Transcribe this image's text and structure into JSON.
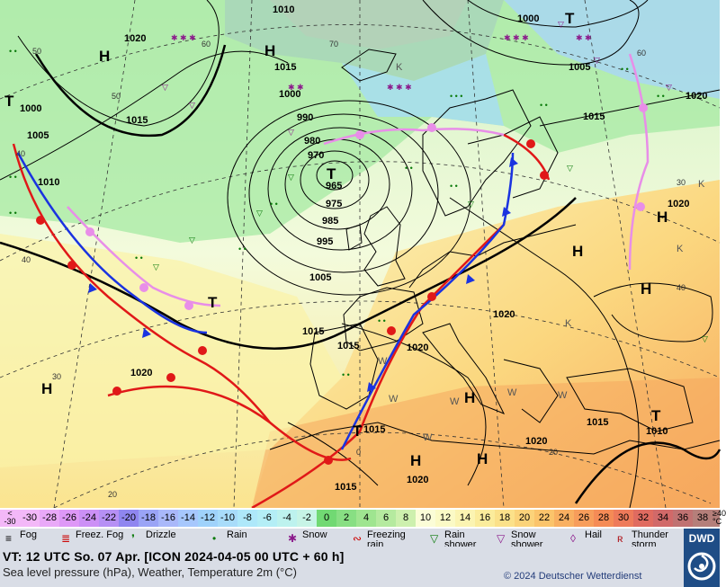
{
  "header": {
    "valid_time": "VT: 12 UTC So.  07 Apr. [ICON 2024-04-05  00 UTC + 60 h]",
    "subtitle": "Sea level pressure (hPa), Weather, Temperature 2m (°C)",
    "copyright": "© 2024 Deutscher Wetterdienst"
  },
  "logo": {
    "text": "DWD"
  },
  "temperature_scale": {
    "left_label": [
      "<",
      "-30"
    ],
    "right_label": [
      "≥40",
      "°C"
    ],
    "cells": [
      {
        "label": "-30",
        "color": "#f3b8f8"
      },
      {
        "label": "-28",
        "color": "#e9a9f8"
      },
      {
        "label": "-26",
        "color": "#de98f7"
      },
      {
        "label": "-24",
        "color": "#cc90f6"
      },
      {
        "label": "-22",
        "color": "#b690f5"
      },
      {
        "label": "-20",
        "color": "#8f86f0"
      },
      {
        "label": "-18",
        "color": "#9aa4f6"
      },
      {
        "label": "-16",
        "color": "#a9b8fa"
      },
      {
        "label": "-14",
        "color": "#a6c7fd"
      },
      {
        "label": "-12",
        "color": "#9fd2fb"
      },
      {
        "label": "-10",
        "color": "#a8dcfa"
      },
      {
        "label": "-8",
        "color": "#aee8fa"
      },
      {
        "label": "-6",
        "color": "#b4eef6"
      },
      {
        "label": "-4",
        "color": "#bdf2ee"
      },
      {
        "label": "-2",
        "color": "#c7f4e6"
      },
      {
        "label": "0",
        "color": "#71d973"
      },
      {
        "label": "2",
        "color": "#88df83"
      },
      {
        "label": "4",
        "color": "#9fe590"
      },
      {
        "label": "6",
        "color": "#b5ea9f"
      },
      {
        "label": "8",
        "color": "#cdf0ae"
      },
      {
        "label": "10",
        "color": "#fbfdd7"
      },
      {
        "label": "12",
        "color": "#fbfac6"
      },
      {
        "label": "14",
        "color": "#fbf4b2"
      },
      {
        "label": "16",
        "color": "#fbec9c"
      },
      {
        "label": "18",
        "color": "#fbe18a"
      },
      {
        "label": "20",
        "color": "#fbd37a"
      },
      {
        "label": "22",
        "color": "#fbc46b"
      },
      {
        "label": "24",
        "color": "#f9b061"
      },
      {
        "label": "26",
        "color": "#f79d5b"
      },
      {
        "label": "28",
        "color": "#f58b56"
      },
      {
        "label": "30",
        "color": "#ee7a5a"
      },
      {
        "label": "32",
        "color": "#e06b60"
      },
      {
        "label": "34",
        "color": "#d16969"
      },
      {
        "label": "36",
        "color": "#c07272"
      },
      {
        "label": "38",
        "color": "#b57f7a"
      }
    ]
  },
  "weather_legend": [
    {
      "icon": "fog-icon",
      "glyph": "≡",
      "label": "Fog",
      "color": "#000"
    },
    {
      "icon": "freezing-fog-icon",
      "glyph": "≣",
      "label": "Freez. Fog",
      "color": "#c00"
    },
    {
      "icon": "drizzle-icon",
      "glyph": "❜",
      "label": "Drizzle",
      "color": "#0a7a0a"
    },
    {
      "icon": "rain-icon",
      "glyph": "•",
      "label": "Rain",
      "color": "#0a7a0a"
    },
    {
      "icon": "snow-icon",
      "glyph": "✱",
      "label": "Snow",
      "color": "#8b1a8b"
    },
    {
      "icon": "freezing-rain-icon",
      "glyph": "∾",
      "label": "Freezing rain",
      "color": "#c00"
    },
    {
      "icon": "rain-shower-icon",
      "glyph": "▽",
      "label": "Rain shower",
      "color": "#0a7a0a"
    },
    {
      "icon": "snow-shower-icon",
      "glyph": "▽",
      "label": "Snow shower",
      "color": "#8b1a8b"
    },
    {
      "icon": "hail-icon",
      "glyph": "◊",
      "label": "Hail",
      "color": "#8b1a8b"
    },
    {
      "icon": "thunderstorm-icon",
      "glyph": "ʀ",
      "label": "Thunder storm",
      "color": "#b0141a"
    }
  ],
  "map": {
    "pressure_labels": [
      "1010",
      "1020",
      "1000",
      "1015",
      "1000",
      "1005",
      "1015",
      "1020",
      "1015",
      "1005",
      "995",
      "990",
      "985",
      "980",
      "975",
      "970",
      "965",
      "1005",
      "1010",
      "1015",
      "1020",
      "1015",
      "1020",
      "1020",
      "1015",
      "1015",
      "1020",
      "1015",
      "1010",
      "1000",
      "1010",
      "1015"
    ],
    "systems": [
      {
        "type": "L",
        "label": "T",
        "name": "low-north-atlantic"
      },
      {
        "type": "H",
        "label": "H",
        "name": "high-greenland"
      },
      {
        "type": "H",
        "label": "H",
        "name": "high-iceland-north"
      },
      {
        "type": "L",
        "label": "T",
        "name": "low-west"
      },
      {
        "type": "L",
        "label": "T",
        "name": "low-mid-atlantic"
      },
      {
        "type": "H",
        "label": "H",
        "name": "high-azores"
      },
      {
        "type": "H",
        "label": "H",
        "name": "high-russia"
      },
      {
        "type": "H",
        "label": "H",
        "name": "high-eastern-europe"
      },
      {
        "type": "H",
        "label": "H",
        "name": "high-ukraine"
      },
      {
        "type": "L",
        "label": "T",
        "name": "low-black-sea"
      },
      {
        "type": "L",
        "label": "T",
        "name": "low-morocco"
      },
      {
        "type": "H",
        "label": "H",
        "name": "high-mediterranean"
      },
      {
        "type": "H",
        "label": "H",
        "name": "high-north-africa-1"
      },
      {
        "type": "H",
        "label": "H",
        "name": "high-north-africa-2"
      },
      {
        "type": "L",
        "label": "T",
        "name": "low-north-norway"
      }
    ],
    "temp_ticks": [
      "40",
      "50",
      "60",
      "70",
      "50",
      "40",
      "30",
      "20",
      "0",
      "20",
      "30",
      "40",
      "60"
    ],
    "small_labels": [
      "K",
      "K",
      "K",
      "K",
      "W",
      "W",
      "W",
      "W",
      "W",
      "W"
    ]
  }
}
